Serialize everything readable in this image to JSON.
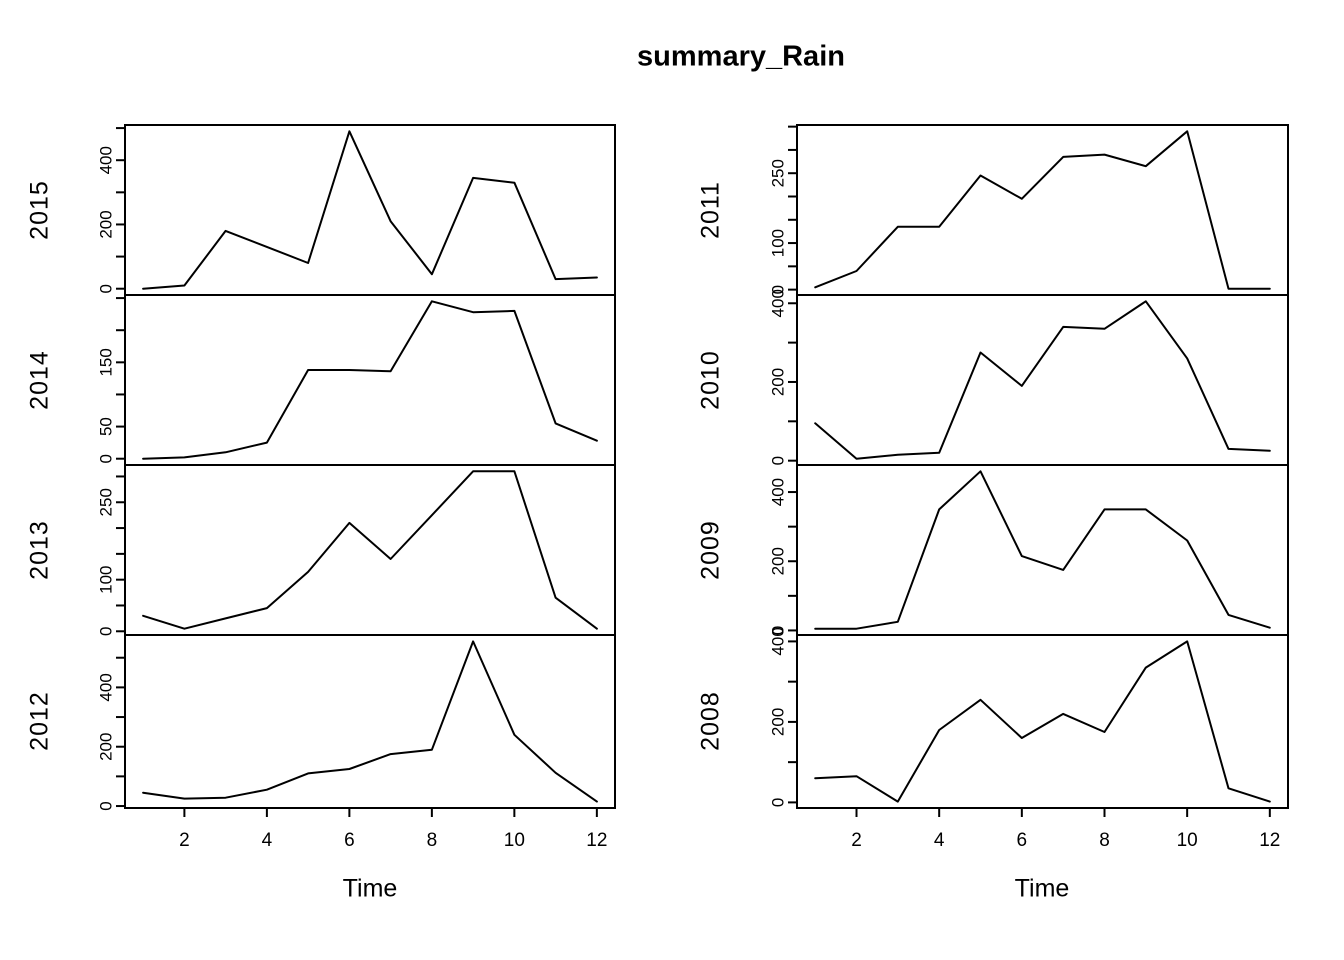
{
  "title": "summary_Rain",
  "chart_data": {
    "type": "line",
    "layout": "two columns of four vertically stacked time-series panels, shared month axis, black line on white, no grid, no legend",
    "xlabel": "Time",
    "x": [
      1,
      2,
      3,
      4,
      5,
      6,
      7,
      8,
      9,
      10,
      11,
      12
    ],
    "xticks": [
      2,
      4,
      6,
      8,
      10,
      12
    ],
    "xlim": [
      1,
      12
    ],
    "line_color": "#000000",
    "panels": [
      {
        "year": "2015",
        "column": "left",
        "row": 0,
        "values": [
          0,
          10,
          180,
          130,
          80,
          490,
          210,
          45,
          345,
          330,
          30,
          35
        ],
        "yticks": [
          0,
          100,
          200,
          300,
          400,
          500
        ],
        "ylabels": [
          0,
          200,
          400
        ]
      },
      {
        "year": "2014",
        "column": "left",
        "row": 1,
        "values": [
          0,
          2,
          10,
          25,
          138,
          138,
          136,
          245,
          228,
          230,
          55,
          28
        ],
        "yticks": [
          0,
          50,
          100,
          150,
          200,
          250
        ],
        "ylabels": [
          0,
          50,
          150
        ]
      },
      {
        "year": "2013",
        "column": "left",
        "row": 2,
        "values": [
          30,
          5,
          25,
          45,
          115,
          210,
          140,
          225,
          310,
          310,
          65,
          5
        ],
        "yticks": [
          0,
          50,
          100,
          150,
          200,
          250,
          300
        ],
        "ylabels": [
          0,
          100,
          250
        ]
      },
      {
        "year": "2012",
        "column": "left",
        "row": 3,
        "values": [
          45,
          25,
          28,
          55,
          110,
          125,
          175,
          190,
          555,
          240,
          112,
          15
        ],
        "yticks": [
          0,
          100,
          200,
          300,
          400,
          500
        ],
        "ylabels": [
          0,
          200,
          400
        ]
      },
      {
        "year": "2011",
        "column": "right",
        "row": 0,
        "values": [
          5,
          40,
          135,
          135,
          245,
          195,
          285,
          290,
          265,
          340,
          2,
          2
        ],
        "yticks": [
          0,
          50,
          100,
          150,
          200,
          250,
          300,
          350
        ],
        "ylabels": [
          0,
          100,
          250
        ]
      },
      {
        "year": "2010",
        "column": "right",
        "row": 1,
        "values": [
          95,
          5,
          15,
          20,
          275,
          190,
          340,
          335,
          405,
          260,
          30,
          25
        ],
        "yticks": [
          0,
          100,
          200,
          300,
          400
        ],
        "ylabels": [
          0,
          200,
          400
        ]
      },
      {
        "year": "2009",
        "column": "right",
        "row": 2,
        "values": [
          5,
          5,
          25,
          350,
          460,
          215,
          175,
          350,
          350,
          260,
          45,
          8
        ],
        "yticks": [
          0,
          100,
          200,
          300,
          400
        ],
        "ylabels": [
          0,
          200,
          400
        ]
      },
      {
        "year": "2008",
        "column": "right",
        "row": 3,
        "values": [
          60,
          65,
          2,
          180,
          255,
          160,
          220,
          175,
          335,
          400,
          35,
          2
        ],
        "yticks": [
          0,
          100,
          200,
          300,
          400
        ],
        "ylabels": [
          0,
          200,
          400
        ]
      }
    ]
  }
}
